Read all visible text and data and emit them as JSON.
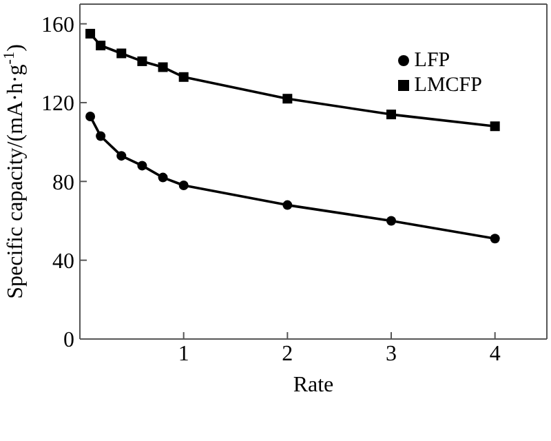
{
  "chart_data": {
    "type": "line",
    "xlabel": "Rate",
    "ylabel": "Specific capacity/(mA·h·g$^{-1}$)",
    "xlim": [
      0,
      4.5
    ],
    "xticks": [
      1,
      2,
      3,
      4
    ],
    "ylim": [
      0,
      170
    ],
    "yticks": [
      0,
      40,
      80,
      120,
      160
    ],
    "grid": false,
    "legend": "top right",
    "line_style": "solid",
    "series": [
      {
        "name": "LMCFP",
        "color": "#000000",
        "marker": "square",
        "x": [
          0.1,
          0.2,
          0.4,
          0.6,
          0.8,
          1,
          2,
          3,
          4
        ],
        "values": [
          155,
          149,
          145,
          141,
          138,
          133,
          122,
          114,
          108
        ]
      },
      {
        "name": "LFP",
        "color": "#000000",
        "marker": "circle",
        "x": [
          0.1,
          0.2,
          0.4,
          0.6,
          0.8,
          1,
          2,
          3,
          4
        ],
        "values": [
          113,
          103,
          93,
          88,
          82,
          78,
          68,
          60,
          51
        ]
      }
    ]
  }
}
